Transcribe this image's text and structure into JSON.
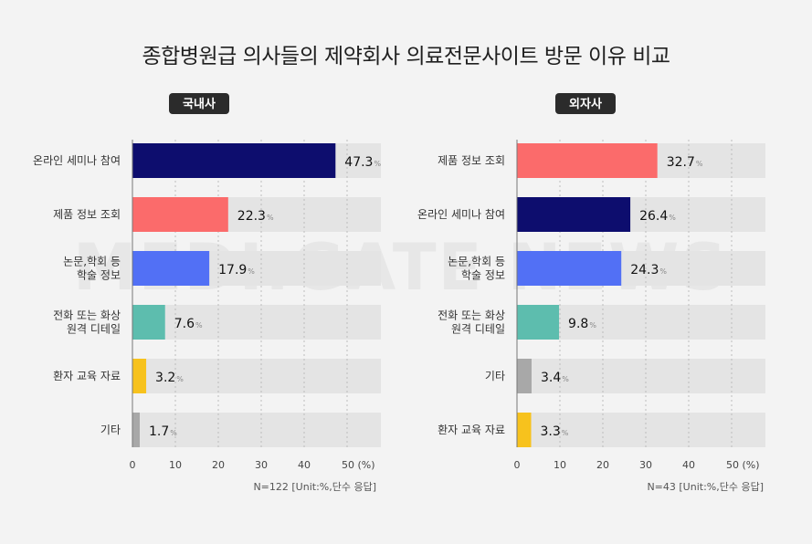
{
  "title": "종합병원급 의사들의 제약회사 의료전문사이트 방문 이유 비교",
  "watermark": "MEDI:GATE NEWS",
  "chart_data": [
    {
      "type": "bar",
      "orientation": "horizontal",
      "panel_label": "국내사",
      "categories": [
        [
          "온라인 세미나 참여"
        ],
        [
          "제품 정보 조회"
        ],
        [
          "논문,학회 등",
          "학술 정보"
        ],
        [
          "전화 또는 화상",
          "원격 디테일"
        ],
        [
          "환자 교육 자료"
        ],
        [
          "기타"
        ]
      ],
      "values": [
        47.3,
        22.3,
        17.9,
        7.6,
        3.2,
        1.7
      ],
      "colors": [
        "#0d0d6e",
        "#fb6b6b",
        "#5270f5",
        "#5dbdae",
        "#f7c21d",
        "#a8a8a8"
      ],
      "value_unit": "%",
      "xlim": [
        0,
        50
      ],
      "x_ticks": [
        "0",
        "10",
        "20",
        "30",
        "40",
        "50 (%)"
      ],
      "note": "N=122  [Unit:%,단수 응답]"
    },
    {
      "type": "bar",
      "orientation": "horizontal",
      "panel_label": "외자사",
      "categories": [
        [
          "제품 정보 조회"
        ],
        [
          "온라인 세미나 참여"
        ],
        [
          "논문,학회 등",
          "학술 정보"
        ],
        [
          "전화 또는 화상",
          "원격 디테일"
        ],
        [
          "기타"
        ],
        [
          "환자 교육 자료"
        ]
      ],
      "values": [
        32.7,
        26.4,
        24.3,
        9.8,
        3.4,
        3.3
      ],
      "colors": [
        "#fb6b6b",
        "#0d0d6e",
        "#5270f5",
        "#5dbdae",
        "#a8a8a8",
        "#f7c21d"
      ],
      "value_unit": "%",
      "xlim": [
        0,
        50
      ],
      "x_ticks": [
        "0",
        "10",
        "20",
        "30",
        "40",
        "50 (%)"
      ],
      "note": "N=43  [Unit:%,단수 응답]"
    }
  ]
}
